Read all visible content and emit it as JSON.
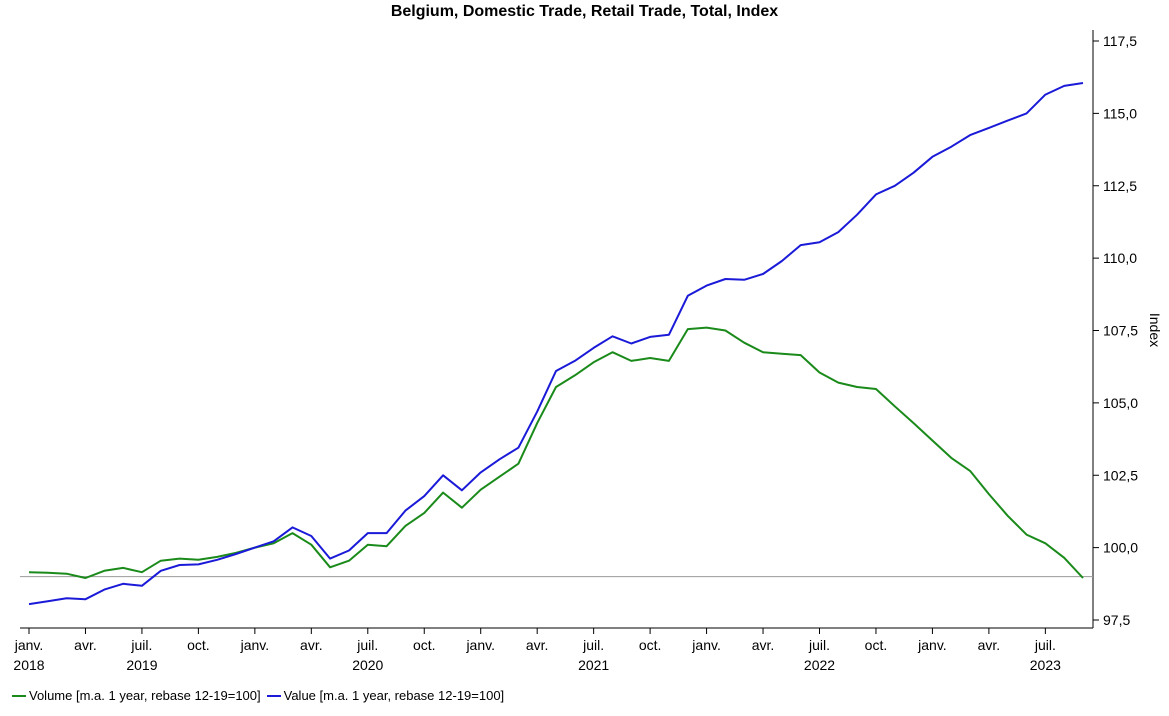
{
  "chart_data": {
    "type": "line",
    "title": "Belgium, Domestic Trade, Retail Trade, Total, Index",
    "ylabel": "Index",
    "ylim": [
      97.5,
      117.5
    ],
    "yticks": [
      "97,5",
      "100,0",
      "102,5",
      "105,0",
      "107,5",
      "110,0",
      "112,5",
      "115,0",
      "117,5"
    ],
    "reference_line": 99.0,
    "x_start": "2018-01",
    "x_tick_labels": [
      {
        "month": "2018-01",
        "label": "janv.",
        "year": "2018"
      },
      {
        "month": "2018-04",
        "label": "avr."
      },
      {
        "month": "2018-07",
        "label": "juil.",
        "year": "2019"
      },
      {
        "month": "2018-10",
        "label": "oct."
      },
      {
        "month": "2019-01",
        "label": "janv."
      },
      {
        "month": "2019-04",
        "label": "avr."
      },
      {
        "month": "2019-07",
        "label": "juil.",
        "year": "2020"
      },
      {
        "month": "2019-10",
        "label": "oct."
      },
      {
        "month": "2020-01",
        "label": "janv."
      },
      {
        "month": "2020-04",
        "label": "avr."
      },
      {
        "month": "2020-07",
        "label": "juil.",
        "year": "2021"
      },
      {
        "month": "2020-10",
        "label": "oct."
      },
      {
        "month": "2021-01",
        "label": "janv."
      },
      {
        "month": "2021-04",
        "label": "avr."
      },
      {
        "month": "2021-07",
        "label": "juil.",
        "year": "2022"
      },
      {
        "month": "2021-10",
        "label": "oct."
      },
      {
        "month": "2022-01",
        "label": "janv."
      },
      {
        "month": "2022-04",
        "label": "avr."
      },
      {
        "month": "2022-07",
        "label": "juil.",
        "year": "2023"
      }
    ],
    "series": [
      {
        "name": "Volume [m.a. 1 year, rebase 12-19=100]",
        "color": "#1a8a1a",
        "values": [
          99.15,
          99.13,
          99.1,
          98.95,
          99.2,
          99.3,
          99.15,
          99.55,
          99.62,
          99.58,
          99.68,
          99.82,
          100.0,
          100.15,
          100.5,
          100.1,
          99.32,
          99.55,
          100.1,
          100.05,
          100.75,
          101.2,
          101.9,
          101.38,
          102.0,
          102.45,
          102.9,
          104.3,
          105.55,
          105.95,
          106.4,
          106.75,
          106.45,
          106.55,
          106.45,
          107.55,
          107.6,
          107.5,
          107.08,
          106.75,
          106.7,
          106.65,
          106.05,
          105.7,
          105.55,
          105.48,
          104.88,
          104.3,
          103.7,
          103.1,
          102.65,
          101.85,
          101.1,
          100.45,
          100.15,
          99.65,
          98.95
        ]
      },
      {
        "name": "Value [m.a. 1 year, rebase 12-19=100]",
        "color": "#1a1ad8",
        "values": [
          98.05,
          98.15,
          98.25,
          98.22,
          98.55,
          98.75,
          98.68,
          99.2,
          99.4,
          99.42,
          99.58,
          99.78,
          100.0,
          100.22,
          100.7,
          100.4,
          99.62,
          99.9,
          100.5,
          100.5,
          101.28,
          101.78,
          102.5,
          101.98,
          102.6,
          103.05,
          103.45,
          104.7,
          106.1,
          106.45,
          106.9,
          107.3,
          107.05,
          107.28,
          107.35,
          108.7,
          109.05,
          109.28,
          109.25,
          109.45,
          109.9,
          110.45,
          110.55,
          110.9,
          111.5,
          112.2,
          112.5,
          112.95,
          113.5,
          113.85,
          114.25,
          114.5,
          114.75,
          115.0,
          115.65,
          115.95,
          116.05
        ]
      }
    ]
  }
}
